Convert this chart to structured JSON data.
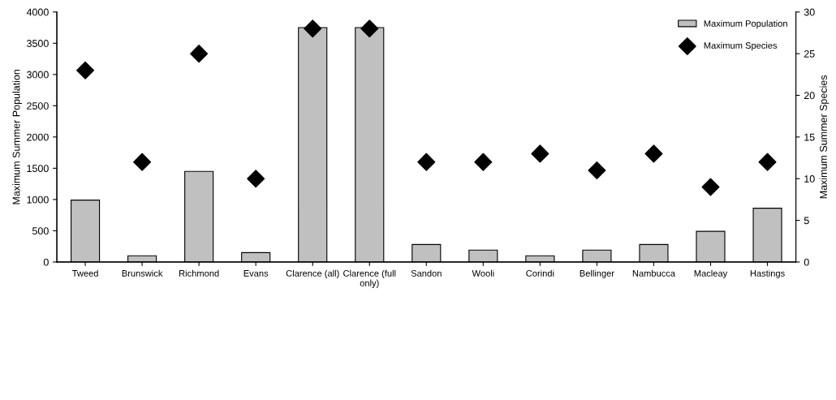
{
  "chart_data": {
    "type": "bar",
    "ylabel": "Maximum Summer Population",
    "y2label": "Maximum Summer Species",
    "categories": [
      "Tweed",
      "Brunswick",
      "Richmond",
      "Evans",
      "Clarence (all)",
      "Clarence (full\nonly)",
      "Sandon",
      "Wooli",
      "Corindi",
      "Bellinger",
      "Nambucca",
      "Macleay",
      "Hastings"
    ],
    "series": [
      {
        "name": "Maximum Population",
        "color": "#c0c0c0",
        "values": [
          990,
          100,
          1450,
          150,
          3750,
          3750,
          280,
          190,
          100,
          190,
          280,
          490,
          860
        ]
      },
      {
        "name": "Maximum Species",
        "type": "scatter",
        "color": "#000000",
        "axis": "y2",
        "marker": "diamond",
        "values": [
          23,
          12,
          25,
          10,
          28,
          28,
          12,
          12,
          13,
          11,
          13,
          9,
          12
        ]
      }
    ],
    "ylim": [
      0,
      4000
    ],
    "yticks": [
      0,
      500,
      1000,
      1500,
      2000,
      2500,
      3000,
      3500,
      4000
    ],
    "y2lim": [
      0,
      30
    ],
    "y2ticks": [
      0,
      5,
      10,
      15,
      20,
      25,
      30
    ],
    "grid": false,
    "legend": "top right"
  }
}
